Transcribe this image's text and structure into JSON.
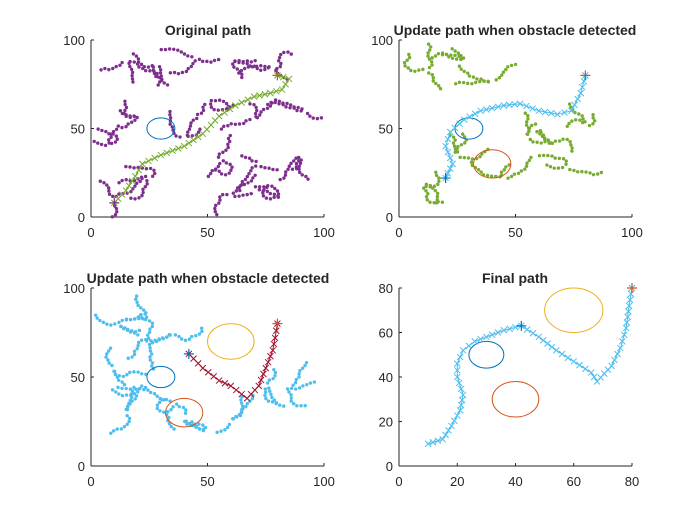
{
  "figure": {
    "background": "#ffffff"
  },
  "colors": {
    "purple": "#7E2F8E",
    "green": "#77AC30",
    "cyan": "#4DBEEE",
    "maroon": "#A2142F",
    "blue": "#0072BD",
    "orange": "#D95319",
    "yellow": "#EDB120"
  },
  "chart_data": [
    {
      "type": "scatter",
      "title": "Original path",
      "xlim": [
        0,
        100
      ],
      "ylim": [
        0,
        100
      ],
      "xticks": [
        0,
        50,
        100
      ],
      "yticks": [
        0,
        50,
        100
      ],
      "tree": {
        "color": "#7E2F8E",
        "marker": "dot",
        "roots": [
          [
            10,
            10
          ],
          [
            15,
            88
          ],
          [
            28,
            86
          ],
          [
            45,
            90
          ],
          [
            60,
            88
          ],
          [
            78,
            84
          ],
          [
            92,
            60
          ],
          [
            88,
            35
          ],
          [
            72,
            30
          ],
          [
            55,
            32
          ],
          [
            40,
            45
          ],
          [
            20,
            58
          ],
          [
            8,
            40
          ],
          [
            25,
            22
          ],
          [
            60,
            12
          ],
          [
            82,
            12
          ],
          [
            50,
            65
          ],
          [
            70,
            55
          ]
        ]
      },
      "obstacles": [
        {
          "cx": 30,
          "cy": 50,
          "r": 6,
          "color": "#0072BD"
        }
      ],
      "path": {
        "color": "#77AC30",
        "marker": "x",
        "points": [
          [
            10,
            8
          ],
          [
            15,
            15
          ],
          [
            19,
            23
          ],
          [
            22,
            30
          ],
          [
            30,
            35
          ],
          [
            40,
            40
          ],
          [
            48,
            47
          ],
          [
            55,
            57
          ],
          [
            62,
            63
          ],
          [
            70,
            68
          ],
          [
            77,
            70
          ],
          [
            82,
            72
          ],
          [
            85,
            78
          ],
          [
            80,
            80
          ]
        ]
      },
      "start": {
        "x": 10,
        "y": 8,
        "color": "#7E2F8E"
      },
      "goal": {
        "x": 80,
        "y": 80,
        "color": "#D95319"
      }
    },
    {
      "type": "scatter",
      "title": "Update path when obstacle detected",
      "xlim": [
        0,
        100
      ],
      "ylim": [
        0,
        100
      ],
      "xticks": [
        0,
        50,
        100
      ],
      "yticks": [
        0,
        50,
        100
      ],
      "tree": {
        "color": "#77AC30",
        "marker": "dot",
        "roots": [
          [
            12,
            83
          ],
          [
            28,
            88
          ],
          [
            40,
            77
          ],
          [
            55,
            45
          ],
          [
            65,
            40
          ],
          [
            80,
            52
          ],
          [
            72,
            28
          ],
          [
            45,
            22
          ],
          [
            10,
            18
          ],
          [
            25,
            35
          ]
        ]
      },
      "obstacles": [
        {
          "cx": 30,
          "cy": 50,
          "r": 6,
          "color": "#0072BD"
        },
        {
          "cx": 40,
          "cy": 30,
          "r": 8,
          "color": "#D95319"
        }
      ],
      "path": {
        "color": "#4DBEEE",
        "marker": "x",
        "points": [
          [
            20,
            22
          ],
          [
            23,
            30
          ],
          [
            20,
            40
          ],
          [
            22,
            48
          ],
          [
            28,
            55
          ],
          [
            35,
            60
          ],
          [
            45,
            63
          ],
          [
            52,
            64
          ],
          [
            60,
            60
          ],
          [
            68,
            58
          ],
          [
            74,
            60
          ],
          [
            78,
            70
          ],
          [
            80,
            80
          ]
        ]
      },
      "start": {
        "x": 20,
        "y": 22,
        "color": "#0072BD"
      },
      "goal": {
        "x": 80,
        "y": 80,
        "color": "#D95319"
      }
    },
    {
      "type": "scatter",
      "title": "Update path when obstacle detected",
      "xlim": [
        0,
        100
      ],
      "ylim": [
        0,
        100
      ],
      "xticks": [
        0,
        50,
        100
      ],
      "yticks": [
        0,
        50,
        100
      ],
      "tree": {
        "color": "#4DBEEE",
        "marker": "dot",
        "roots": [
          [
            12,
            80
          ],
          [
            25,
            85
          ],
          [
            35,
            75
          ],
          [
            10,
            55
          ],
          [
            20,
            45
          ],
          [
            15,
            30
          ],
          [
            35,
            35
          ],
          [
            50,
            20
          ],
          [
            60,
            25
          ],
          [
            75,
            45
          ],
          [
            85,
            45
          ],
          [
            25,
            70
          ]
        ]
      },
      "obstacles": [
        {
          "cx": 30,
          "cy": 50,
          "r": 6,
          "color": "#0072BD"
        },
        {
          "cx": 40,
          "cy": 30,
          "r": 8,
          "color": "#D95319"
        },
        {
          "cx": 60,
          "cy": 70,
          "r": 10,
          "color": "#EDB120"
        }
      ],
      "path": {
        "color": "#A2142F",
        "marker": "x",
        "points": [
          [
            42,
            63
          ],
          [
            48,
            55
          ],
          [
            55,
            48
          ],
          [
            60,
            45
          ],
          [
            67,
            38
          ],
          [
            72,
            45
          ],
          [
            75,
            55
          ],
          [
            78,
            65
          ],
          [
            79,
            72
          ],
          [
            80,
            80
          ]
        ]
      },
      "start": {
        "x": 42,
        "y": 63,
        "color": "#0072BD"
      },
      "goal": {
        "x": 80,
        "y": 80,
        "color": "#D95319"
      }
    },
    {
      "type": "line",
      "title": "Final path",
      "xlim": [
        0,
        80
      ],
      "ylim": [
        0,
        80
      ],
      "xticks": [
        0,
        20,
        40,
        60,
        80
      ],
      "yticks": [
        0,
        20,
        40,
        60,
        80
      ],
      "tree": null,
      "obstacles": [
        {
          "cx": 30,
          "cy": 50,
          "r": 6,
          "color": "#0072BD"
        },
        {
          "cx": 40,
          "cy": 30,
          "r": 8,
          "color": "#D95319"
        },
        {
          "cx": 60,
          "cy": 70,
          "r": 10,
          "color": "#EDB120"
        }
      ],
      "path": {
        "color": "#4DBEEE",
        "marker": "x",
        "points": [
          [
            10,
            10
          ],
          [
            15,
            12
          ],
          [
            18,
            18
          ],
          [
            21,
            25
          ],
          [
            22,
            32
          ],
          [
            20,
            40
          ],
          [
            20,
            46
          ],
          [
            22,
            52
          ],
          [
            26,
            56
          ],
          [
            30,
            58
          ],
          [
            36,
            61
          ],
          [
            42,
            63
          ],
          [
            48,
            58
          ],
          [
            54,
            52
          ],
          [
            60,
            47
          ],
          [
            66,
            42
          ],
          [
            68,
            38
          ],
          [
            73,
            45
          ],
          [
            76,
            53
          ],
          [
            78,
            62
          ],
          [
            79,
            72
          ],
          [
            80,
            80
          ]
        ]
      },
      "start": {
        "x": 42,
        "y": 63,
        "color": "#0072BD"
      },
      "goal": {
        "x": 80,
        "y": 80,
        "color": "#D95319"
      }
    }
  ]
}
